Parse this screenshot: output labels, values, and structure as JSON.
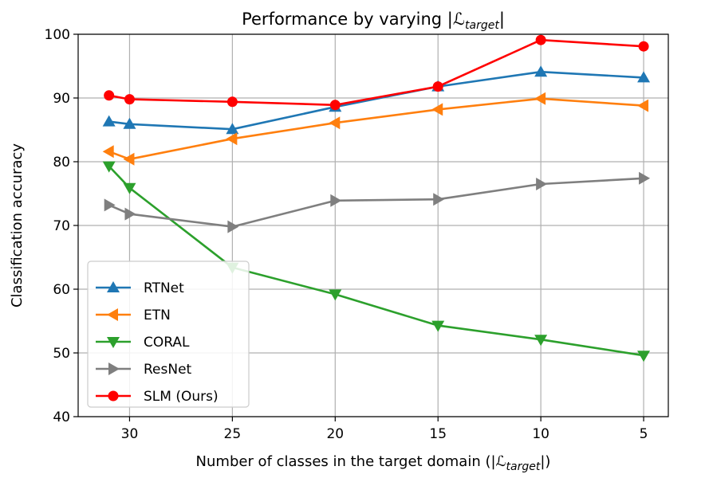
{
  "chart_data": {
    "type": "line",
    "title_prefix": "Performance by varying |",
    "title_symbol": "ℒ",
    "title_subscript": "target",
    "title_suffix": "|",
    "xlabel_prefix": "Number of classes in the target domain (|",
    "xlabel_symbol": "ℒ",
    "xlabel_subscript": "target",
    "xlabel_suffix": "|)",
    "ylabel": "Classification accuracy",
    "x_ticks": [
      30,
      25,
      20,
      15,
      10,
      5
    ],
    "y_ticks": [
      40,
      50,
      60,
      70,
      80,
      90,
      100
    ],
    "xlim": [
      32.5,
      3.8
    ],
    "ylim": [
      40,
      100
    ],
    "grid": true,
    "legend_position": "lower-left",
    "x": [
      31,
      30,
      25,
      20,
      15,
      10,
      5
    ],
    "series": [
      {
        "name": "RTNet",
        "color": "#1f77b4",
        "marker": "triangle-up",
        "values": [
          86.3,
          85.9,
          85.1,
          88.6,
          91.8,
          94.1,
          93.2
        ]
      },
      {
        "name": "ETN",
        "color": "#ff7f0e",
        "marker": "triangle-left",
        "values": [
          81.6,
          80.4,
          83.6,
          86.1,
          88.2,
          89.9,
          88.8
        ]
      },
      {
        "name": "CORAL",
        "color": "#2ca02c",
        "marker": "triangle-down",
        "values": [
          79.3,
          75.9,
          63.4,
          59.2,
          54.3,
          52.1,
          49.6
        ]
      },
      {
        "name": "ResNet",
        "color": "#7f7f7f",
        "marker": "triangle-right",
        "values": [
          73.2,
          71.8,
          69.8,
          73.9,
          74.1,
          76.5,
          77.4
        ]
      },
      {
        "name": "SLM (Ours)",
        "color": "#ff0000",
        "marker": "circle",
        "values": [
          90.4,
          89.8,
          89.4,
          88.9,
          91.8,
          99.1,
          98.1
        ]
      }
    ]
  }
}
